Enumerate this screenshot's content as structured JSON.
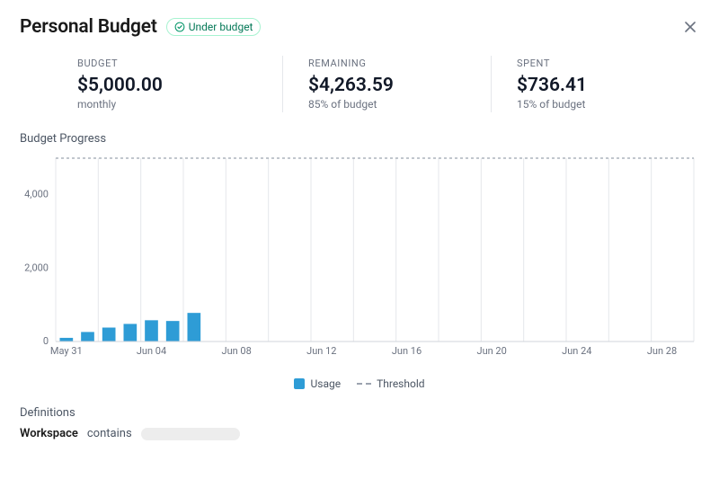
{
  "header": {
    "title": "Personal Budget",
    "badge_text": "Under budget",
    "badge_text_color": "#047857",
    "badge_border_color": "#a7f3d0",
    "badge_icon_color": "#059669"
  },
  "stats": {
    "budget": {
      "label": "BUDGET",
      "value": "$5,000.00",
      "sub": "monthly"
    },
    "remaining": {
      "label": "REMAINING",
      "value": "$4,263.59",
      "sub": "85% of budget"
    },
    "spent": {
      "label": "SPENT",
      "value": "$736.41",
      "sub": "15% of budget"
    }
  },
  "chart": {
    "section_title": "Budget Progress",
    "type": "bar",
    "ylim": [
      0,
      5000
    ],
    "yticks": [
      0,
      2000,
      4000
    ],
    "ytick_labels": [
      "0",
      "2,000",
      "4,000"
    ],
    "threshold": 5000,
    "threshold_color": "#9ca3af",
    "bar_color": "#2e9cd6",
    "grid_color": "#e5e7eb",
    "axis_color": "#d1d5db",
    "background_color": "#ffffff",
    "tick_fontsize": 11,
    "days": 30,
    "bars": [
      {
        "i": 0,
        "value": 100
      },
      {
        "i": 1,
        "value": 260
      },
      {
        "i": 2,
        "value": 380
      },
      {
        "i": 3,
        "value": 480
      },
      {
        "i": 4,
        "value": 580
      },
      {
        "i": 5,
        "value": 560
      },
      {
        "i": 6,
        "value": 780
      }
    ],
    "xtick_positions": [
      0,
      4,
      8,
      12,
      16,
      20,
      24,
      28
    ],
    "xtick_labels": [
      "May 31",
      "Jun 04",
      "Jun 08",
      "Jun 12",
      "Jun 16",
      "Jun 20",
      "Jun 24",
      "Jun 28"
    ],
    "legend": {
      "usage": "Usage",
      "threshold": "Threshold"
    }
  },
  "definitions": {
    "title": "Definitions",
    "key": "Workspace",
    "operator": "contains"
  }
}
